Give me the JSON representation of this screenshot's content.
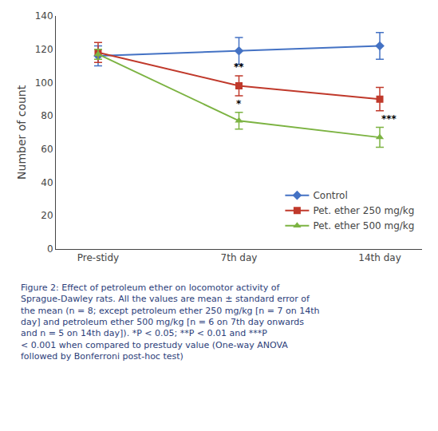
{
  "chart_data": {
    "type": "line",
    "categories": [
      "Pre-stidy",
      "7th day",
      "14th day"
    ],
    "series": [
      {
        "name": "Control",
        "color": "#4472C4",
        "marker": "diamond",
        "values": [
          116,
          119,
          122
        ],
        "errors": [
          6,
          8,
          8
        ]
      },
      {
        "name": "Pet. ether 250 mg/kg",
        "color": "#C0392B",
        "marker": "square",
        "values": [
          118,
          98,
          90
        ],
        "errors": [
          6,
          6,
          7
        ]
      },
      {
        "name": "Pet. ether 500 mg/kg",
        "color": "#7CB342",
        "marker": "triangle-up",
        "values": [
          117,
          77,
          67
        ],
        "errors": [
          3,
          5,
          6
        ]
      }
    ],
    "annotations": [
      {
        "text": "**",
        "category": "7th day",
        "series": "Pet. ether 250 mg/kg"
      },
      {
        "text": "*",
        "category": "7th day",
        "series": "Pet. ether 500 mg/kg"
      },
      {
        "text": "***",
        "category": "14th day",
        "series": "Pet. ether 500 mg/kg"
      }
    ],
    "ylabel": "Number of count",
    "ylim": [
      0,
      140
    ],
    "yticks": [
      0,
      20,
      40,
      60,
      80,
      100,
      120,
      140
    ],
    "grid": false,
    "legend": "lower right",
    "caption": "Figure 2: Effect of petroleum ether on locomotor activity of\nSprague-Dawley rats. All the values are mean ± standard error of\nthe mean (n = 8; except petroleum ether 250 mg/kg [n = 7 on 14th\nday] and petroleum ether 500 mg/kg [n = 6 on 7th day onwards\nand n = 5 on 14th day]). *P < 0.05; **P < 0.01 and ***P\n< 0.001 when compared to prestudy value (One-way ANOVA\nfollowed by Bonferroni post-hoc test)"
  }
}
